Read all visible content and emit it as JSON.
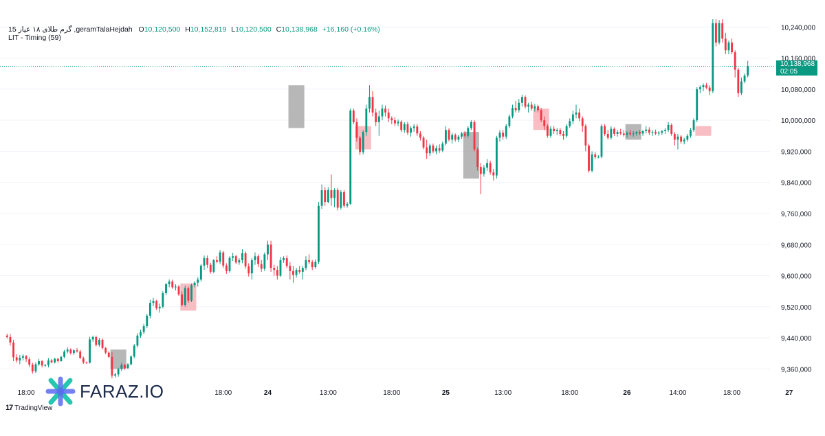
{
  "header": {
    "symbol": "گرم طلای ۱۸ عیار 15 ,geramTalaHejdah",
    "open_label": "O",
    "open": "10,120,500",
    "high_label": "H",
    "high": "10,152,819",
    "low_label": "L",
    "low": "10,120,500",
    "close_label": "C",
    "close": "10,138,968",
    "change": "+16,160 (+0.16%)",
    "indicator": "LIT - Timing (59)"
  },
  "last_price": {
    "value": "10,138,968",
    "countdown": "02:05",
    "level": 10138968
  },
  "watermark": {
    "brand": "FARAZ.IO",
    "platform": "TradingView"
  },
  "colors": {
    "up": "#089981",
    "down": "#f23645",
    "zone_red": "#f7a8b0",
    "zone_gray": "#a5a5a5",
    "grid": "#f0f3fa"
  },
  "chart_data": {
    "type": "candlestick",
    "y_range": [
      9320000,
      10260000
    ],
    "y_ticks": [
      {
        "value": 10240000,
        "label": "10,240,000"
      },
      {
        "value": 10160000,
        "label": "10,160,000"
      },
      {
        "value": 10080000,
        "label": "10,080,000"
      },
      {
        "value": 10000000,
        "label": "10,000,000"
      },
      {
        "value": 9920000,
        "label": "9,920,000"
      },
      {
        "value": 9840000,
        "label": "9,840,000"
      },
      {
        "value": 9760000,
        "label": "9,760,000"
      },
      {
        "value": 9680000,
        "label": "9,680,000"
      },
      {
        "value": 9600000,
        "label": "9,600,000"
      },
      {
        "value": 9520000,
        "label": "9,520,000"
      },
      {
        "value": 9440000,
        "label": "9,440,000"
      },
      {
        "value": 9360000,
        "label": "9,360,000"
      }
    ],
    "x_ticks": [
      {
        "i": 6,
        "label": "18:00",
        "bold": false
      },
      {
        "i": 68,
        "label": "18:00",
        "bold": false
      },
      {
        "i": 82,
        "label": "24",
        "bold": true
      },
      {
        "i": 101,
        "label": "13:00",
        "bold": false
      },
      {
        "i": 121,
        "label": "18:00",
        "bold": false
      },
      {
        "i": 138,
        "label": "25",
        "bold": true
      },
      {
        "i": 156,
        "label": "13:00",
        "bold": false
      },
      {
        "i": 177,
        "label": "18:00",
        "bold": false
      },
      {
        "i": 195,
        "label": "26",
        "bold": true
      },
      {
        "i": 211,
        "label": "14:00",
        "bold": false
      },
      {
        "i": 228,
        "label": "18:00",
        "bold": false
      },
      {
        "i": 246,
        "label": "27",
        "bold": true
      },
      {
        "i": 264,
        "label": "13:00",
        "bold": false
      }
    ],
    "zones": [
      {
        "start": 33,
        "end": 37,
        "top": 9410000,
        "bottom": 9360000,
        "color": "gray"
      },
      {
        "start": 55,
        "end": 59,
        "top": 9580000,
        "bottom": 9510000,
        "color": "red"
      },
      {
        "start": 89,
        "end": 93,
        "top": 10090000,
        "bottom": 9980000,
        "color": "gray"
      },
      {
        "start": 110,
        "end": 114,
        "top": 9985000,
        "bottom": 9925000,
        "color": "red"
      },
      {
        "start": 144,
        "end": 148,
        "top": 9970000,
        "bottom": 9850000,
        "color": "gray"
      },
      {
        "start": 166,
        "end": 170,
        "top": 10030000,
        "bottom": 9975000,
        "color": "red"
      },
      {
        "start": 195,
        "end": 199,
        "top": 9990000,
        "bottom": 9950000,
        "color": "gray"
      },
      {
        "start": 217,
        "end": 221,
        "top": 9985000,
        "bottom": 9960000,
        "color": "red"
      }
    ],
    "candles": [
      {
        "o": 9446000,
        "h": 9451000,
        "l": 9438000,
        "c": 9442000
      },
      {
        "o": 9442000,
        "h": 9450000,
        "l": 9420000,
        "c": 9428000
      },
      {
        "o": 9428000,
        "h": 9435000,
        "l": 9380000,
        "c": 9390000
      },
      {
        "o": 9390000,
        "h": 9398000,
        "l": 9376000,
        "c": 9382000
      },
      {
        "o": 9382000,
        "h": 9396000,
        "l": 9372000,
        "c": 9389000
      },
      {
        "o": 9389000,
        "h": 9398000,
        "l": 9382000,
        "c": 9393000
      },
      {
        "o": 9393000,
        "h": 9396000,
        "l": 9378000,
        "c": 9385000
      },
      {
        "o": 9385000,
        "h": 9390000,
        "l": 9365000,
        "c": 9371000
      },
      {
        "o": 9371000,
        "h": 9376000,
        "l": 9348000,
        "c": 9354000
      },
      {
        "o": 9354000,
        "h": 9377000,
        "l": 9350000,
        "c": 9372000
      },
      {
        "o": 9372000,
        "h": 9386000,
        "l": 9368000,
        "c": 9380000
      },
      {
        "o": 9380000,
        "h": 9383000,
        "l": 9364000,
        "c": 9369000
      },
      {
        "o": 9369000,
        "h": 9373000,
        "l": 9365000,
        "c": 9370000
      },
      {
        "o": 9370000,
        "h": 9388000,
        "l": 9364000,
        "c": 9382000
      },
      {
        "o": 9382000,
        "h": 9386000,
        "l": 9375000,
        "c": 9377000
      },
      {
        "o": 9377000,
        "h": 9389000,
        "l": 9374000,
        "c": 9386000
      },
      {
        "o": 9386000,
        "h": 9389000,
        "l": 9376000,
        "c": 9380000
      },
      {
        "o": 9380000,
        "h": 9394000,
        "l": 9379000,
        "c": 9391000
      },
      {
        "o": 9391000,
        "h": 9409000,
        "l": 9388000,
        "c": 9405000
      },
      {
        "o": 9405000,
        "h": 9416000,
        "l": 9400000,
        "c": 9410000
      },
      {
        "o": 9410000,
        "h": 9413000,
        "l": 9397000,
        "c": 9401000
      },
      {
        "o": 9401000,
        "h": 9411000,
        "l": 9396000,
        "c": 9408000
      },
      {
        "o": 9408000,
        "h": 9414000,
        "l": 9402000,
        "c": 9405000
      },
      {
        "o": 9405000,
        "h": 9409000,
        "l": 9386000,
        "c": 9388000
      },
      {
        "o": 9388000,
        "h": 9392000,
        "l": 9373000,
        "c": 9377000
      },
      {
        "o": 9377000,
        "h": 9379000,
        "l": 9373000,
        "c": 9376000
      },
      {
        "o": 9376000,
        "h": 9443000,
        "l": 9374000,
        "c": 9436000
      },
      {
        "o": 9436000,
        "h": 9446000,
        "l": 9430000,
        "c": 9442000
      },
      {
        "o": 9442000,
        "h": 9446000,
        "l": 9418000,
        "c": 9422000
      },
      {
        "o": 9422000,
        "h": 9440000,
        "l": 9417000,
        "c": 9435000
      },
      {
        "o": 9435000,
        "h": 9439000,
        "l": 9410000,
        "c": 9414000
      },
      {
        "o": 9414000,
        "h": 9416000,
        "l": 9398000,
        "c": 9402000
      },
      {
        "o": 9402000,
        "h": 9406000,
        "l": 9388000,
        "c": 9391000
      },
      {
        "o": 9391000,
        "h": 9403000,
        "l": 9336000,
        "c": 9343000
      },
      {
        "o": 9343000,
        "h": 9350000,
        "l": 9338000,
        "c": 9346000
      },
      {
        "o": 9346000,
        "h": 9363000,
        "l": 9340000,
        "c": 9360000
      },
      {
        "o": 9360000,
        "h": 9376000,
        "l": 9355000,
        "c": 9370000
      },
      {
        "o": 9370000,
        "h": 9373000,
        "l": 9358000,
        "c": 9362000
      },
      {
        "o": 9362000,
        "h": 9375000,
        "l": 9360000,
        "c": 9372000
      },
      {
        "o": 9372000,
        "h": 9395000,
        "l": 9369000,
        "c": 9392000
      },
      {
        "o": 9392000,
        "h": 9424000,
        "l": 9388000,
        "c": 9420000
      },
      {
        "o": 9420000,
        "h": 9452000,
        "l": 9415000,
        "c": 9446000
      },
      {
        "o": 9446000,
        "h": 9461000,
        "l": 9440000,
        "c": 9455000
      },
      {
        "o": 9455000,
        "h": 9476000,
        "l": 9450000,
        "c": 9470000
      },
      {
        "o": 9470000,
        "h": 9502000,
        "l": 9465000,
        "c": 9497000
      },
      {
        "o": 9497000,
        "h": 9538000,
        "l": 9490000,
        "c": 9530000
      },
      {
        "o": 9530000,
        "h": 9543000,
        "l": 9522000,
        "c": 9535000
      },
      {
        "o": 9535000,
        "h": 9538000,
        "l": 9512000,
        "c": 9516000
      },
      {
        "o": 9516000,
        "h": 9528000,
        "l": 9505000,
        "c": 9520000
      },
      {
        "o": 9520000,
        "h": 9560000,
        "l": 9516000,
        "c": 9555000
      },
      {
        "o": 9555000,
        "h": 9582000,
        "l": 9550000,
        "c": 9578000
      },
      {
        "o": 9578000,
        "h": 9590000,
        "l": 9570000,
        "c": 9585000
      },
      {
        "o": 9585000,
        "h": 9590000,
        "l": 9566000,
        "c": 9570000
      },
      {
        "o": 9570000,
        "h": 9578000,
        "l": 9562000,
        "c": 9572000
      },
      {
        "o": 9572000,
        "h": 9576000,
        "l": 9548000,
        "c": 9552000
      },
      {
        "o": 9552000,
        "h": 9560000,
        "l": 9520000,
        "c": 9525000
      },
      {
        "o": 9525000,
        "h": 9574000,
        "l": 9520000,
        "c": 9568000
      },
      {
        "o": 9568000,
        "h": 9572000,
        "l": 9530000,
        "c": 9536000
      },
      {
        "o": 9536000,
        "h": 9580000,
        "l": 9532000,
        "c": 9576000
      },
      {
        "o": 9576000,
        "h": 9586000,
        "l": 9570000,
        "c": 9582000
      },
      {
        "o": 9582000,
        "h": 9596000,
        "l": 9572000,
        "c": 9590000
      },
      {
        "o": 9590000,
        "h": 9630000,
        "l": 9585000,
        "c": 9626000
      },
      {
        "o": 9626000,
        "h": 9652000,
        "l": 9615000,
        "c": 9645000
      },
      {
        "o": 9645000,
        "h": 9652000,
        "l": 9620000,
        "c": 9628000
      },
      {
        "o": 9628000,
        "h": 9633000,
        "l": 9605000,
        "c": 9610000
      },
      {
        "o": 9610000,
        "h": 9643000,
        "l": 9606000,
        "c": 9640000
      },
      {
        "o": 9640000,
        "h": 9650000,
        "l": 9632000,
        "c": 9636000
      },
      {
        "o": 9636000,
        "h": 9666000,
        "l": 9630000,
        "c": 9660000
      },
      {
        "o": 9660000,
        "h": 9664000,
        "l": 9620000,
        "c": 9626000
      },
      {
        "o": 9626000,
        "h": 9632000,
        "l": 9605000,
        "c": 9612000
      },
      {
        "o": 9612000,
        "h": 9650000,
        "l": 9608000,
        "c": 9646000
      },
      {
        "o": 9646000,
        "h": 9659000,
        "l": 9638000,
        "c": 9650000
      },
      {
        "o": 9650000,
        "h": 9654000,
        "l": 9630000,
        "c": 9634000
      },
      {
        "o": 9634000,
        "h": 9645000,
        "l": 9628000,
        "c": 9640000
      },
      {
        "o": 9640000,
        "h": 9668000,
        "l": 9632000,
        "c": 9658000
      },
      {
        "o": 9658000,
        "h": 9662000,
        "l": 9618000,
        "c": 9624000
      },
      {
        "o": 9624000,
        "h": 9632000,
        "l": 9598000,
        "c": 9606000
      },
      {
        "o": 9606000,
        "h": 9645000,
        "l": 9590000,
        "c": 9640000
      },
      {
        "o": 9640000,
        "h": 9660000,
        "l": 9628000,
        "c": 9650000
      },
      {
        "o": 9650000,
        "h": 9655000,
        "l": 9622000,
        "c": 9630000
      },
      {
        "o": 9630000,
        "h": 9640000,
        "l": 9610000,
        "c": 9618000
      },
      {
        "o": 9618000,
        "h": 9660000,
        "l": 9612000,
        "c": 9655000
      },
      {
        "o": 9655000,
        "h": 9690000,
        "l": 9640000,
        "c": 9680000
      },
      {
        "o": 9680000,
        "h": 9690000,
        "l": 9610000,
        "c": 9620000
      },
      {
        "o": 9620000,
        "h": 9628000,
        "l": 9600000,
        "c": 9615000
      },
      {
        "o": 9615000,
        "h": 9625000,
        "l": 9590000,
        "c": 9600000
      },
      {
        "o": 9600000,
        "h": 9648000,
        "l": 9597000,
        "c": 9640000
      },
      {
        "o": 9640000,
        "h": 9650000,
        "l": 9633000,
        "c": 9645000
      },
      {
        "o": 9645000,
        "h": 9652000,
        "l": 9620000,
        "c": 9625000
      },
      {
        "o": 9625000,
        "h": 9635000,
        "l": 9590000,
        "c": 9612000
      },
      {
        "o": 9612000,
        "h": 9625000,
        "l": 9582000,
        "c": 9602000
      },
      {
        "o": 9602000,
        "h": 9620000,
        "l": 9595000,
        "c": 9615000
      },
      {
        "o": 9615000,
        "h": 9625000,
        "l": 9605000,
        "c": 9610000
      },
      {
        "o": 9610000,
        "h": 9625000,
        "l": 9590000,
        "c": 9620000
      },
      {
        "o": 9620000,
        "h": 9650000,
        "l": 9614000,
        "c": 9640000
      },
      {
        "o": 9640000,
        "h": 9655000,
        "l": 9630000,
        "c": 9635000
      },
      {
        "o": 9635000,
        "h": 9640000,
        "l": 9615000,
        "c": 9622000
      },
      {
        "o": 9622000,
        "h": 9642000,
        "l": 9618000,
        "c": 9636000
      },
      {
        "o": 9636000,
        "h": 9790000,
        "l": 9630000,
        "c": 9780000
      },
      {
        "o": 9780000,
        "h": 9835000,
        "l": 9772000,
        "c": 9820000
      },
      {
        "o": 9820000,
        "h": 9828000,
        "l": 9780000,
        "c": 9790000
      },
      {
        "o": 9790000,
        "h": 9828000,
        "l": 9786000,
        "c": 9820000
      },
      {
        "o": 9820000,
        "h": 9860000,
        "l": 9780000,
        "c": 9800000
      },
      {
        "o": 9800000,
        "h": 9825000,
        "l": 9776000,
        "c": 9820000
      },
      {
        "o": 9820000,
        "h": 9826000,
        "l": 9768000,
        "c": 9775000
      },
      {
        "o": 9775000,
        "h": 9820000,
        "l": 9770000,
        "c": 9815000
      },
      {
        "o": 9815000,
        "h": 9820000,
        "l": 9775000,
        "c": 9780000
      },
      {
        "o": 9780000,
        "h": 9790000,
        "l": 9775000,
        "c": 9785000
      }
    ],
    "candles_part2_note": ""
  }
}
